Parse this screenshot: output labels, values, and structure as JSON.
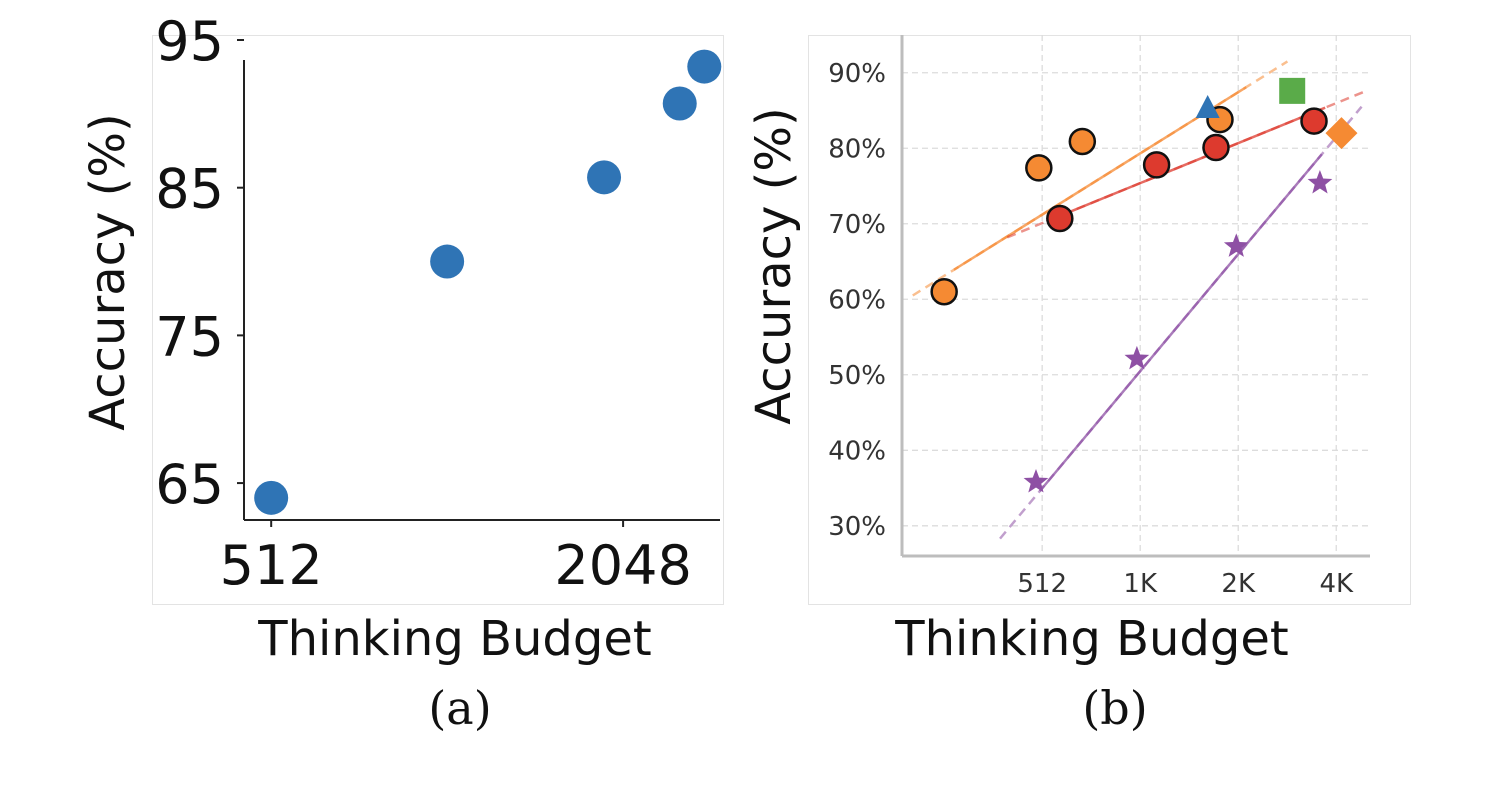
{
  "chart_data": [
    {
      "panel": "(a)",
      "type": "scatter",
      "xlabel": "Thinking Budget",
      "ylabel": "Accuracy (%)",
      "x_scale": "log2",
      "x_ticks": [
        512,
        2048
      ],
      "x_tick_labels": [
        "512",
        "2048"
      ],
      "xlim": [
        460,
        3000
      ],
      "y_ticks": [
        65,
        75,
        85,
        95
      ],
      "y_tick_labels": [
        "65",
        "75",
        "85",
        "95"
      ],
      "ylim": [
        62.5,
        95
      ],
      "grid": false,
      "series": [
        {
          "color": "#2f74b5",
          "points": [
            {
              "x": 512,
              "y": 64.0
            },
            {
              "x": 1024,
              "y": 80.0
            },
            {
              "x": 1900,
              "y": 85.7
            },
            {
              "x": 2560,
              "y": 90.7
            },
            {
              "x": 2820,
              "y": 93.2
            }
          ]
        }
      ]
    },
    {
      "panel": "(b)",
      "type": "scatter",
      "xlabel": "Thinking Budget",
      "ylabel": "Accuracy (%)",
      "x_scale": "log2",
      "x_ticks": [
        512,
        1024,
        2048,
        4096
      ],
      "x_tick_labels": [
        "512",
        "1K",
        "2K",
        "4K"
      ],
      "xlim": [
        190,
        5200
      ],
      "y_ticks": [
        30,
        40,
        50,
        60,
        70,
        80,
        90
      ],
      "y_tick_labels": [
        "30%",
        "40%",
        "50%",
        "60%",
        "70%",
        "80%",
        "90%"
      ],
      "ylim": [
        26,
        95
      ],
      "grid": true,
      "series": [
        {
          "marker": "circle",
          "color": "#f58a33",
          "points": [
            {
              "x": 256,
              "y": 61.0
            },
            {
              "x": 500,
              "y": 77.4
            },
            {
              "x": 680,
              "y": 80.9
            },
            {
              "x": 1800,
              "y": 83.8
            }
          ],
          "fit": {
            "x1": 205,
            "y1": 60.5,
            "x2": 2900,
            "y2": 91.5
          }
        },
        {
          "marker": "circle",
          "color": "#dd3a2e",
          "points": [
            {
              "x": 580,
              "y": 70.7
            },
            {
              "x": 1150,
              "y": 77.8
            },
            {
              "x": 1750,
              "y": 80.1
            },
            {
              "x": 3500,
              "y": 83.6
            }
          ],
          "fit": {
            "x1": 400,
            "y1": 68.2,
            "x2": 5000,
            "y2": 87.5
          }
        },
        {
          "marker": "star",
          "color": "#8e50a4",
          "points": [
            {
              "x": 490,
              "y": 35.8
            },
            {
              "x": 1000,
              "y": 52.1
            },
            {
              "x": 2020,
              "y": 67.0
            },
            {
              "x": 3650,
              "y": 75.4
            }
          ],
          "fit": {
            "x1": 380,
            "y1": 28.3,
            "x2": 4900,
            "y2": 85.5
          }
        },
        {
          "marker": "triangle",
          "color": "#2f74b5",
          "points": [
            {
              "x": 1650,
              "y": 85.2
            }
          ]
        },
        {
          "marker": "square",
          "color": "#5aab49",
          "points": [
            {
              "x": 3000,
              "y": 87.6
            }
          ]
        },
        {
          "marker": "diamond",
          "color": "#f58a33",
          "points": [
            {
              "x": 4250,
              "y": 82.0
            }
          ]
        }
      ]
    }
  ],
  "captions": [
    "(a)",
    "(b)"
  ]
}
